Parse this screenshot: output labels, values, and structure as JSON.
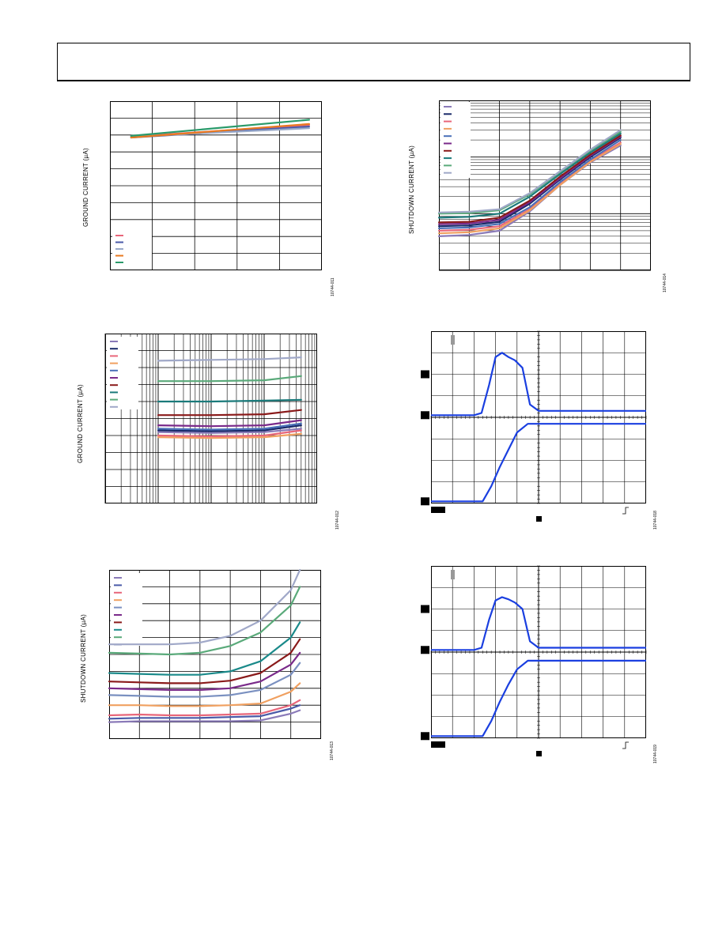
{
  "header": {
    "title": ""
  },
  "colors": {
    "scope_trace": "#1a3fe0",
    "grid": "#000000",
    "plot_border": "#000000"
  },
  "chart_data": [
    {
      "type": "line",
      "ylabel": "GROUND CURRENT (µA)",
      "figure_id": "10744-011",
      "xlim": [
        0,
        5
      ],
      "ylim": [
        0,
        10
      ],
      "xscale": "linear",
      "legend_placement": "bottom-left",
      "grid": true,
      "series": [
        {
          "color": "#e8667a",
          "x": [
            0.5,
            4.7
          ],
          "y": [
            7.9,
            8.6
          ]
        },
        {
          "color": "#4a5aa8",
          "x": [
            0.5,
            4.7
          ],
          "y": [
            7.85,
            8.5
          ]
        },
        {
          "color": "#98a8c8",
          "x": [
            0.5,
            4.7
          ],
          "y": [
            7.9,
            8.4
          ]
        },
        {
          "color": "#e87a20",
          "x": [
            0.5,
            4.7
          ],
          "y": [
            7.85,
            8.65
          ]
        },
        {
          "color": "#2a9a6a",
          "x": [
            0.5,
            4.7
          ],
          "y": [
            7.95,
            8.9
          ]
        }
      ]
    },
    {
      "type": "line",
      "ylabel": "SHUTDOWN CURRENT (µA)",
      "figure_id": "10744-014",
      "xlim": [
        0,
        7
      ],
      "yscale": "log",
      "ylim": [
        0.1,
        100
      ],
      "legend_placement": "top-left",
      "grid": true,
      "series": [
        {
          "color": "#8a7ab8",
          "x": [
            0,
            1,
            2,
            3,
            4,
            5,
            6
          ],
          "y": [
            0.4,
            0.42,
            0.5,
            1.1,
            3.2,
            8,
            16
          ]
        },
        {
          "color": "#1a2a6a",
          "x": [
            0,
            1,
            2,
            3,
            4,
            5,
            6
          ],
          "y": [
            0.6,
            0.62,
            0.72,
            1.5,
            4,
            10,
            22
          ]
        },
        {
          "color": "#e8667a",
          "x": [
            0,
            1,
            2,
            3,
            4,
            5,
            6
          ],
          "y": [
            0.5,
            0.52,
            0.6,
            1.2,
            3.3,
            8.5,
            18
          ]
        },
        {
          "color": "#f0a060",
          "x": [
            0,
            1,
            2,
            3,
            4,
            5,
            6
          ],
          "y": [
            0.45,
            0.47,
            0.55,
            1.15,
            3.2,
            8.2,
            17
          ]
        },
        {
          "color": "#4a70b8",
          "x": [
            0,
            1,
            2,
            3,
            4,
            5,
            6
          ],
          "y": [
            0.55,
            0.57,
            0.66,
            1.3,
            3.6,
            9,
            20
          ]
        },
        {
          "color": "#7a2a8a",
          "x": [
            0,
            1,
            2,
            3,
            4,
            5,
            6
          ],
          "y": [
            0.65,
            0.67,
            0.78,
            1.6,
            4.2,
            10.5,
            23
          ]
        },
        {
          "color": "#8a1a1a",
          "x": [
            0,
            1,
            2,
            3,
            4,
            5,
            6
          ],
          "y": [
            0.7,
            0.72,
            0.85,
            1.7,
            4.5,
            11,
            24
          ]
        },
        {
          "color": "#1a7a7a",
          "x": [
            0,
            1,
            2,
            3,
            4,
            5,
            6
          ],
          "y": [
            0.85,
            0.88,
            1,
            2,
            5,
            12,
            26
          ]
        },
        {
          "color": "#5aaa7a",
          "x": [
            0,
            1,
            2,
            3,
            4,
            5,
            6
          ],
          "y": [
            1,
            1.02,
            1.15,
            2.2,
            5.4,
            13,
            28
          ]
        },
        {
          "color": "#a0a8c8",
          "x": [
            0,
            1,
            2,
            3,
            4,
            5,
            6
          ],
          "y": [
            1.05,
            1.08,
            1.2,
            2.3,
            5.6,
            13.5,
            30
          ]
        }
      ]
    },
    {
      "type": "line",
      "ylabel": "GROUND CURRENT (µA)",
      "figure_id": "10744-012",
      "xscale": "log",
      "xlim": [
        1,
        10000
      ],
      "ylim": [
        0,
        10
      ],
      "legend_placement": "top-left",
      "grid": true,
      "series": [
        {
          "color": "#8a7ab8",
          "x": [
            10,
            100,
            1000,
            5000
          ],
          "y": [
            4.2,
            4.15,
            4.2,
            4.4
          ]
        },
        {
          "color": "#1a2a6a",
          "x": [
            10,
            100,
            1000,
            5000
          ],
          "y": [
            4.3,
            4.25,
            4.3,
            4.6
          ]
        },
        {
          "color": "#e8667a",
          "x": [
            10,
            100,
            1000,
            5000
          ],
          "y": [
            4.0,
            3.95,
            4.0,
            4.3
          ]
        },
        {
          "color": "#f0a060",
          "x": [
            10,
            100,
            1000,
            5000
          ],
          "y": [
            3.9,
            3.85,
            3.9,
            4.1
          ]
        },
        {
          "color": "#4a70b8",
          "x": [
            10,
            100,
            1000,
            5000
          ],
          "y": [
            4.4,
            4.35,
            4.4,
            4.7
          ]
        },
        {
          "color": "#7a2a8a",
          "x": [
            10,
            100,
            1000,
            5000
          ],
          "y": [
            4.6,
            4.55,
            4.6,
            4.9
          ]
        },
        {
          "color": "#8a1a1a",
          "x": [
            10,
            100,
            1000,
            5000
          ],
          "y": [
            5.2,
            5.2,
            5.25,
            5.5
          ]
        },
        {
          "color": "#1a7a7a",
          "x": [
            10,
            100,
            1000,
            5000
          ],
          "y": [
            6.0,
            6.0,
            6.05,
            6.1
          ]
        },
        {
          "color": "#5aaa7a",
          "x": [
            10,
            100,
            1000,
            5000
          ],
          "y": [
            7.2,
            7.2,
            7.25,
            7.5
          ]
        },
        {
          "color": "#a0a8c8",
          "x": [
            10,
            100,
            1000,
            5000
          ],
          "y": [
            8.4,
            8.45,
            8.5,
            8.6
          ]
        }
      ]
    },
    {
      "type": "line",
      "ylabel": "SHUTDOWN CURRENT (µA)",
      "figure_id": "10744-013",
      "xlim": [
        0,
        7
      ],
      "ylim": [
        0,
        10
      ],
      "legend_placement": "top-left",
      "grid": true,
      "series": [
        {
          "color": "#8a7ab8",
          "x": [
            0,
            1,
            2,
            3,
            4,
            5,
            6,
            6.3
          ],
          "y": [
            1.0,
            1.05,
            1.05,
            1.05,
            1.05,
            1.1,
            1.5,
            1.7
          ]
        },
        {
          "color": "#4a5aa8",
          "x": [
            0,
            1,
            2,
            3,
            4,
            5,
            6,
            6.3
          ],
          "y": [
            1.2,
            1.25,
            1.25,
            1.25,
            1.3,
            1.35,
            1.8,
            2.0
          ]
        },
        {
          "color": "#e8667a",
          "x": [
            0,
            1,
            2,
            3,
            4,
            5,
            6,
            6.3
          ],
          "y": [
            1.4,
            1.45,
            1.4,
            1.4,
            1.45,
            1.5,
            2.0,
            2.3
          ]
        },
        {
          "color": "#f0a060",
          "x": [
            0,
            1,
            2,
            3,
            4,
            5,
            6,
            6.3
          ],
          "y": [
            2.0,
            2.0,
            1.95,
            1.95,
            2.0,
            2.1,
            2.8,
            3.3
          ]
        },
        {
          "color": "#7a90c0",
          "x": [
            0,
            1,
            2,
            3,
            4,
            5,
            6,
            6.3
          ],
          "y": [
            2.6,
            2.55,
            2.5,
            2.5,
            2.6,
            2.9,
            3.8,
            4.5
          ]
        },
        {
          "color": "#7a2a8a",
          "x": [
            0,
            1,
            2,
            3,
            4,
            5,
            6,
            6.3
          ],
          "y": [
            3.0,
            2.95,
            2.9,
            2.9,
            3.0,
            3.4,
            4.4,
            5.1
          ]
        },
        {
          "color": "#8a1a1a",
          "x": [
            0,
            1,
            2,
            3,
            4,
            5,
            6,
            6.3
          ],
          "y": [
            3.4,
            3.35,
            3.3,
            3.3,
            3.45,
            3.9,
            5.1,
            5.9
          ]
        },
        {
          "color": "#1a8a8a",
          "x": [
            0,
            1,
            2,
            3,
            4,
            5,
            6,
            6.3
          ],
          "y": [
            3.9,
            3.85,
            3.8,
            3.8,
            4.0,
            4.6,
            6.0,
            6.9
          ]
        },
        {
          "color": "#5aaa7a",
          "x": [
            0,
            1,
            2,
            3,
            4,
            5,
            6,
            6.3
          ],
          "y": [
            5.1,
            5.05,
            5.0,
            5.1,
            5.5,
            6.3,
            7.9,
            9.0
          ]
        },
        {
          "color": "#a0a8c8",
          "x": [
            0,
            1,
            2,
            3,
            4,
            5,
            6,
            6.3
          ],
          "y": [
            5.6,
            5.6,
            5.6,
            5.7,
            6.1,
            7.0,
            8.8,
            10.0
          ]
        }
      ]
    },
    {
      "type": "line",
      "figure_id": "10744-018",
      "xlim": [
        0,
        10
      ],
      "ylim": [
        0,
        8
      ],
      "grid": true,
      "series": [
        {
          "color": "#1a3fe0",
          "x": [
            0,
            2.0,
            2.35,
            2.7,
            3.0,
            3.3,
            3.6,
            3.9,
            4.25,
            4.6,
            5.0,
            6,
            7,
            8,
            10
          ],
          "y": [
            4.1,
            4.1,
            4.2,
            5.5,
            6.8,
            7.0,
            6.8,
            6.65,
            6.3,
            4.6,
            4.3,
            4.3,
            4.3,
            4.3,
            4.3
          ]
        },
        {
          "color": "#1a3fe0",
          "x": [
            0,
            2.4,
            2.8,
            3.2,
            3.6,
            4.0,
            4.5,
            5.0,
            6,
            8,
            10
          ],
          "y": [
            0.1,
            0.1,
            0.8,
            1.7,
            2.5,
            3.3,
            3.7,
            3.7,
            3.7,
            3.7,
            3.7
          ]
        }
      ]
    },
    {
      "type": "line",
      "figure_id": "10744-019",
      "xlim": [
        0,
        10
      ],
      "ylim": [
        0,
        8
      ],
      "grid": true,
      "series": [
        {
          "color": "#1a3fe0",
          "x": [
            0,
            2.0,
            2.35,
            2.7,
            3.0,
            3.3,
            3.6,
            3.9,
            4.25,
            4.6,
            5.0,
            6,
            7,
            8,
            10
          ],
          "y": [
            4.1,
            4.1,
            4.2,
            5.5,
            6.4,
            6.55,
            6.45,
            6.3,
            6.0,
            4.5,
            4.2,
            4.2,
            4.2,
            4.2,
            4.2
          ]
        },
        {
          "color": "#1a3fe0",
          "x": [
            0,
            2.4,
            2.8,
            3.2,
            3.6,
            4.0,
            4.5,
            5.0,
            6,
            8,
            10
          ],
          "y": [
            0.1,
            0.1,
            0.8,
            1.7,
            2.5,
            3.2,
            3.6,
            3.6,
            3.6,
            3.6,
            3.6
          ]
        }
      ]
    }
  ]
}
